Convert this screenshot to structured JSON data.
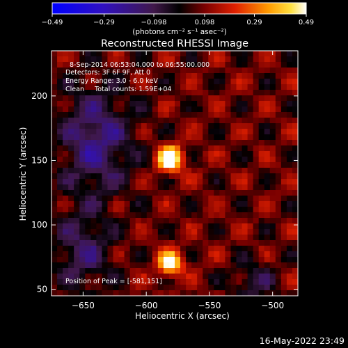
{
  "chart_data": {
    "type": "heatmap",
    "title": "Reconstructed RHESSI Image",
    "xlabel": "Heliocentric X (arcsec)",
    "ylabel": "Heliocentric Y (arcsec)",
    "xlim": [
      -675,
      -480
    ],
    "ylim": [
      45,
      235
    ],
    "x_ticks": [
      -650,
      -600,
      -550,
      -500
    ],
    "y_ticks": [
      50,
      100,
      150,
      200
    ],
    "x_tick_labels": [
      "−650",
      "−600",
      "−550",
      "−500"
    ],
    "y_tick_labels": [
      "50",
      "100",
      "150",
      "200"
    ],
    "grid": false,
    "colorbar": {
      "range": [
        -0.49,
        0.49
      ],
      "ticks": [
        -0.49,
        -0.29,
        -0.098,
        0.098,
        0.29,
        0.49
      ],
      "tick_labels": [
        "−0.49",
        "−0.29",
        "−0.098",
        "0.098",
        "0.29",
        "0.49"
      ],
      "units_text": "(photons cm⁻² s⁻¹ asec⁻²)"
    },
    "sources": [
      {
        "x": -581,
        "y": 151,
        "peak": 0.49
      },
      {
        "x": -581,
        "y": 70,
        "peak": 0.4
      }
    ],
    "annotations": [
      "8-Sep-2014 06:53:04.000 to 06:55:00.000",
      "Detectors: 3F 6F 9F, Att 0",
      "Energy Range: 3.0 - 6.0 keV",
      "Clean     Total counts: 1.59E+04"
    ],
    "peak_label": "Position of Peak = [-581,151]"
  },
  "timestamp": "16-May-2022 23:49"
}
